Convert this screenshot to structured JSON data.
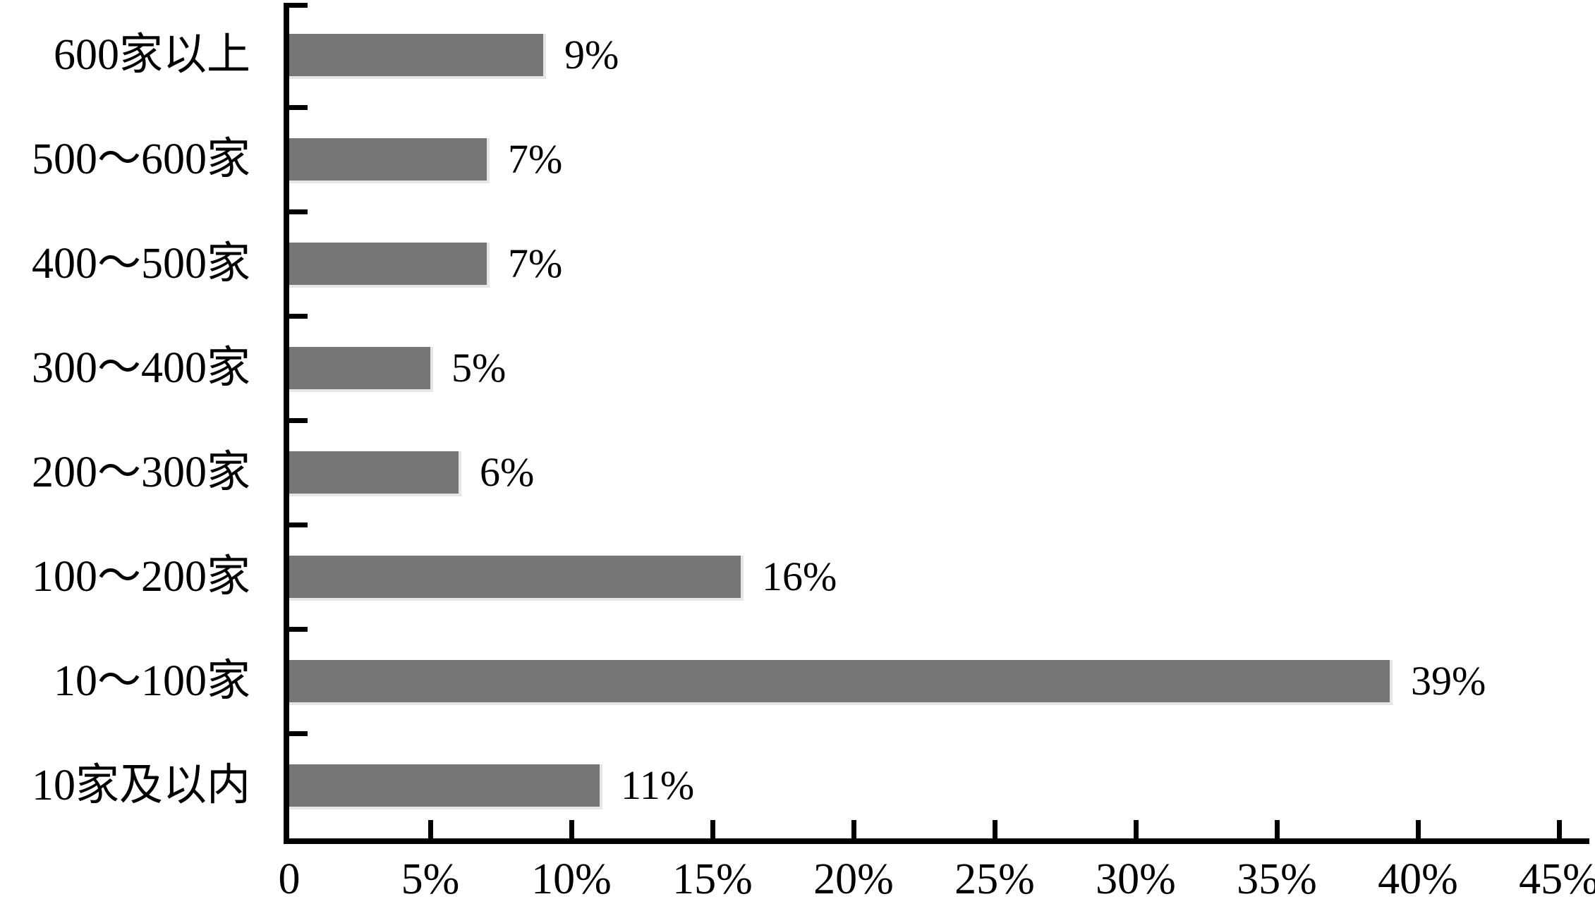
{
  "chart_data": {
    "type": "bar",
    "orientation": "horizontal",
    "title": "",
    "xlabel": "",
    "ylabel": "",
    "categories": [
      "600家以上",
      "500～600家",
      "400～500家",
      "300～400家",
      "200～300家",
      "100～200家",
      "10～100家",
      "10家及以内"
    ],
    "values": [
      9,
      7,
      7,
      5,
      6,
      16,
      39,
      11
    ],
    "value_labels": [
      "9%",
      "7%",
      "7%",
      "5%",
      "6%",
      "16%",
      "39%",
      "11%"
    ],
    "x_tick_labels": [
      "0",
      "5%",
      "10%",
      "15%",
      "20%",
      "25%",
      "30%",
      "35%",
      "40%",
      "45%"
    ],
    "x_tick_values": [
      0,
      5,
      10,
      15,
      20,
      25,
      30,
      35,
      40,
      45
    ],
    "xlim": [
      0,
      45
    ],
    "grid": false,
    "legend": "none",
    "bar_color": "#767676",
    "axis_color": "#000000",
    "text_color": "#000000",
    "background_color": "#ffffff"
  }
}
